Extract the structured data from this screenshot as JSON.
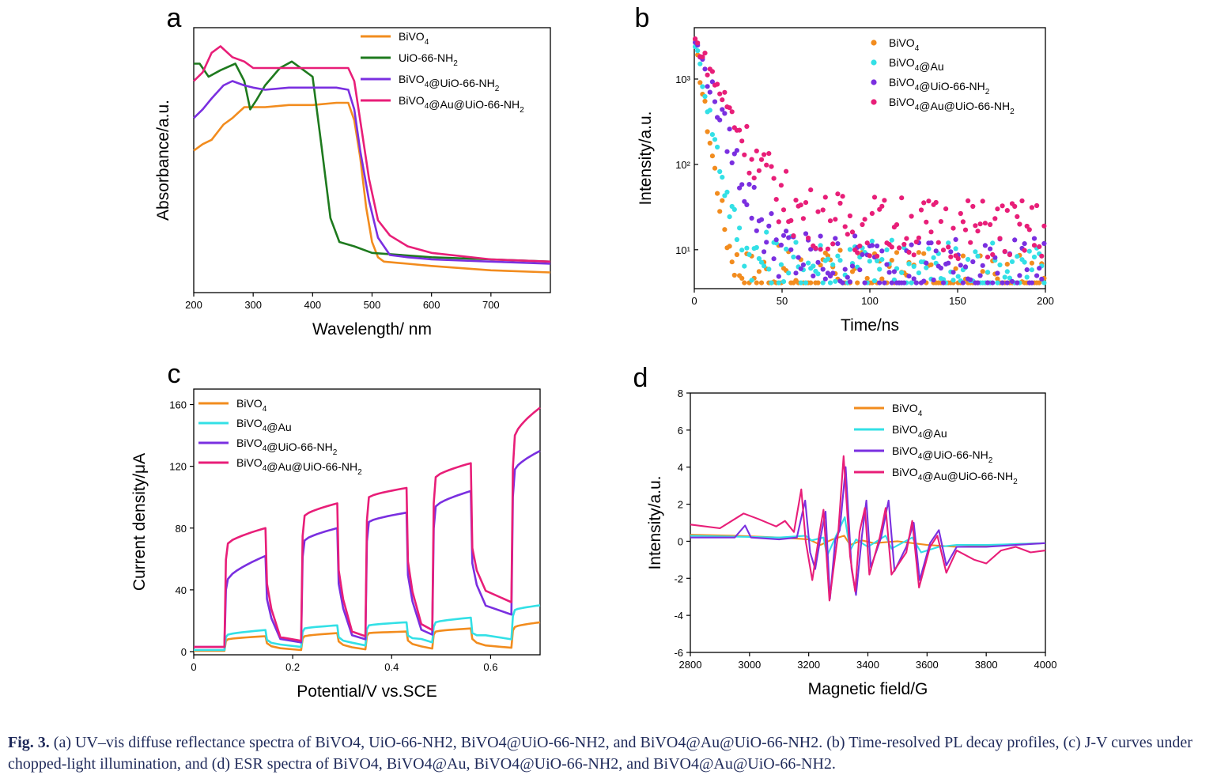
{
  "caption": {
    "label": "Fig. 3.",
    "text": "(a) UV–vis diffuse reflectance spectra of BiVO4, UiO-66-NH2, BiVO4@UiO-66-NH2, and BiVO4@Au@UiO-66-NH2. (b) Time-resolved PL decay profiles, (c) J-V curves under chopped-light illumination, and (d) ESR spectra of BiVO4, BiVO4@Au, BiVO4@UiO-66-NH2, and BiVO4@Au@UiO-66-NH2."
  },
  "chart_data": [
    {
      "panel": "a",
      "type": "line",
      "xlabel": "Wavelength/ nm",
      "ylabel": "Absorbance/a.u.",
      "xlim": [
        200,
        800
      ],
      "ylim": [
        0,
        1
      ],
      "xticks": [
        200,
        300,
        400,
        500,
        600,
        700
      ],
      "yticks": [],
      "legend": "top-right",
      "series": [
        {
          "name": "BiVO4",
          "color": "#f28c1e",
          "points": [
            [
              200,
              0.58
            ],
            [
              215,
              0.61
            ],
            [
              230,
              0.63
            ],
            [
              250,
              0.7
            ],
            [
              265,
              0.73
            ],
            [
              285,
              0.78
            ],
            [
              320,
              0.78
            ],
            [
              360,
              0.79
            ],
            [
              400,
              0.79
            ],
            [
              440,
              0.8
            ],
            [
              460,
              0.8
            ],
            [
              470,
              0.72
            ],
            [
              480,
              0.55
            ],
            [
              490,
              0.32
            ],
            [
              500,
              0.16
            ],
            [
              510,
              0.09
            ],
            [
              520,
              0.07
            ],
            [
              560,
              0.06
            ],
            [
              600,
              0.05
            ],
            [
              700,
              0.03
            ],
            [
              800,
              0.02
            ]
          ]
        },
        {
          "name": "UiO-66-NH2",
          "color": "#1e7a1e",
          "points": [
            [
              200,
              0.98
            ],
            [
              210,
              0.98
            ],
            [
              225,
              0.92
            ],
            [
              245,
              0.95
            ],
            [
              270,
              0.98
            ],
            [
              285,
              0.9
            ],
            [
              295,
              0.77
            ],
            [
              305,
              0.81
            ],
            [
              320,
              0.88
            ],
            [
              345,
              0.96
            ],
            [
              365,
              0.99
            ],
            [
              385,
              0.95
            ],
            [
              400,
              0.92
            ],
            [
              415,
              0.6
            ],
            [
              430,
              0.27
            ],
            [
              445,
              0.16
            ],
            [
              470,
              0.14
            ],
            [
              500,
              0.11
            ],
            [
              600,
              0.09
            ],
            [
              700,
              0.08
            ],
            [
              800,
              0.07
            ]
          ]
        },
        {
          "name": "BiVO4@UiO-66-NH2",
          "color": "#7a2fe0",
          "points": [
            [
              200,
              0.73
            ],
            [
              215,
              0.77
            ],
            [
              230,
              0.82
            ],
            [
              250,
              0.88
            ],
            [
              265,
              0.9
            ],
            [
              285,
              0.88
            ],
            [
              300,
              0.87
            ],
            [
              320,
              0.86
            ],
            [
              360,
              0.87
            ],
            [
              400,
              0.87
            ],
            [
              440,
              0.87
            ],
            [
              460,
              0.86
            ],
            [
              470,
              0.77
            ],
            [
              480,
              0.58
            ],
            [
              495,
              0.35
            ],
            [
              510,
              0.18
            ],
            [
              530,
              0.1
            ],
            [
              560,
              0.09
            ],
            [
              600,
              0.08
            ],
            [
              700,
              0.07
            ],
            [
              800,
              0.06
            ]
          ]
        },
        {
          "name": "BiVO4@Au@UiO-66-NH2",
          "color": "#e81e78",
          "points": [
            [
              200,
              0.9
            ],
            [
              215,
              0.94
            ],
            [
              230,
              1.03
            ],
            [
              245,
              1.06
            ],
            [
              265,
              1.01
            ],
            [
              285,
              0.99
            ],
            [
              300,
              0.96
            ],
            [
              325,
              0.96
            ],
            [
              350,
              0.96
            ],
            [
              375,
              0.96
            ],
            [
              400,
              0.96
            ],
            [
              440,
              0.96
            ],
            [
              460,
              0.96
            ],
            [
              470,
              0.9
            ],
            [
              480,
              0.72
            ],
            [
              495,
              0.45
            ],
            [
              510,
              0.26
            ],
            [
              530,
              0.19
            ],
            [
              560,
              0.14
            ],
            [
              600,
              0.11
            ],
            [
              700,
              0.08
            ],
            [
              800,
              0.07
            ]
          ]
        }
      ]
    },
    {
      "panel": "b",
      "type": "scatter",
      "xlabel": "Time/ns",
      "ylabel": "Intensity/a.u.",
      "xlim": [
        0,
        200
      ],
      "ylim": [
        3.5,
        4000
      ],
      "yscale": "log",
      "xticks": [
        0,
        50,
        100,
        150,
        200
      ],
      "yticks": [
        {
          "label": "10³",
          "value": 1000
        },
        {
          "label": "10²",
          "value": 100
        },
        {
          "label": "10¹",
          "value": 10
        }
      ],
      "legend": "top-right",
      "series": [
        {
          "name": "BiVO4",
          "color": "#f28c1e",
          "decay": {
            "a": 3000,
            "tau": 3.2,
            "floor": 4.5
          }
        },
        {
          "name": "BiVO4@Au",
          "color": "#33e0e6",
          "decay": {
            "a": 3000,
            "tau": 4.2,
            "floor": 6.5
          }
        },
        {
          "name": "BiVO4@UiO-66-NH2",
          "color": "#7a2fe0",
          "decay": {
            "a": 3000,
            "tau": 7,
            "floor": 7
          }
        },
        {
          "name": "BiVO4@Au@UiO-66-NH2",
          "color": "#e81e78",
          "decay": {
            "a": 3000,
            "tau": 10,
            "floor": 20
          }
        }
      ]
    },
    {
      "panel": "c",
      "type": "line",
      "xlabel": "Potential/V vs.SCE",
      "ylabel": "Current density/μA",
      "xlim": [
        0,
        0.7
      ],
      "ylim": [
        0,
        170
      ],
      "xticks": [
        0,
        0.2,
        0.4,
        0.6
      ],
      "yticks": [
        0,
        40,
        80,
        120,
        160
      ],
      "legend": "top-left",
      "light_on": [
        [
          0.065,
          0.145
        ],
        [
          0.22,
          0.29
        ],
        [
          0.35,
          0.43
        ],
        [
          0.485,
          0.56
        ],
        [
          0.645,
          0.7
        ]
      ],
      "series": [
        {
          "name": "BiVO4",
          "color": "#f28c1e",
          "dark": [
            0.5,
            1,
            1.5,
            2,
            2.5
          ],
          "on": [
            [
              8,
              10
            ],
            [
              10,
              12
            ],
            [
              12,
              13
            ],
            [
              13,
              15
            ],
            [
              16,
              19
            ]
          ]
        },
        {
          "name": "BiVO4@Au",
          "color": "#33e0e6",
          "dark": [
            1,
            3,
            4,
            6,
            8
          ],
          "on": [
            [
              11,
              14
            ],
            [
              15,
              17
            ],
            [
              17,
              19
            ],
            [
              19,
              22
            ],
            [
              27,
              30
            ]
          ]
        },
        {
          "name": "BiVO4@UiO-66-NH2",
          "color": "#7a2fe0",
          "dark": [
            3,
            6,
            8,
            11,
            24
          ],
          "on": [
            [
              47,
              62
            ],
            [
              72,
              80
            ],
            [
              84,
              90
            ],
            [
              94,
              104
            ],
            [
              118,
              130
            ]
          ]
        },
        {
          "name": "BiVO4@Au@UiO-66-NH2",
          "color": "#e81e78",
          "dark": [
            3,
            7,
            10,
            14,
            32
          ],
          "on": [
            [
              70,
              80
            ],
            [
              88,
              96
            ],
            [
              100,
              106
            ],
            [
              113,
              122
            ],
            [
              140,
              158
            ]
          ]
        }
      ]
    },
    {
      "panel": "d",
      "type": "line",
      "xlabel": "Magnetic field/G",
      "ylabel": "Intensity/a.u.",
      "xlim": [
        2800,
        4000
      ],
      "ylim": [
        -6,
        8
      ],
      "xticks": [
        2800,
        3000,
        3200,
        3400,
        3600,
        3800,
        4000
      ],
      "yticks": [
        -6,
        -4,
        -2,
        0,
        2,
        4,
        6,
        8
      ],
      "legend": "top-right",
      "series": [
        {
          "name": "BiVO4",
          "color": "#f28c1e",
          "points": [
            [
              2800,
              0.35
            ],
            [
              2950,
              0.3
            ],
            [
              3100,
              0.2
            ],
            [
              3200,
              0.1
            ],
            [
              3240,
              -0.2
            ],
            [
              3280,
              0.1
            ],
            [
              3320,
              0.3
            ],
            [
              3340,
              -0.2
            ],
            [
              3380,
              0.05
            ],
            [
              3420,
              -0.1
            ],
            [
              3500,
              0.0
            ],
            [
              3600,
              -0.2
            ],
            [
              3700,
              -0.3
            ],
            [
              3800,
              -0.25
            ],
            [
              3900,
              -0.15
            ],
            [
              4000,
              -0.1
            ]
          ]
        },
        {
          "name": "BiVO4@Au",
          "color": "#33e0e6",
          "points": [
            [
              2800,
              0.3
            ],
            [
              2950,
              0.25
            ],
            [
              3100,
              0.2
            ],
            [
              3190,
              0.3
            ],
            [
              3210,
              0.05
            ],
            [
              3250,
              0.2
            ],
            [
              3262,
              -0.8
            ],
            [
              3290,
              0.2
            ],
            [
              3322,
              1.3
            ],
            [
              3340,
              -0.5
            ],
            [
              3360,
              0.1
            ],
            [
              3400,
              -0.3
            ],
            [
              3460,
              0.3
            ],
            [
              3480,
              -0.4
            ],
            [
              3550,
              0.2
            ],
            [
              3580,
              -0.6
            ],
            [
              3640,
              -0.3
            ],
            [
              3700,
              -0.2
            ],
            [
              3800,
              -0.2
            ],
            [
              4000,
              -0.1
            ]
          ]
        },
        {
          "name": "BiVO4@UiO-66-NH2",
          "color": "#7a2fe0",
          "points": [
            [
              2800,
              0.2
            ],
            [
              2950,
              0.2
            ],
            [
              2985,
              0.85
            ],
            [
              3005,
              0.2
            ],
            [
              3100,
              0.1
            ],
            [
              3160,
              0.2
            ],
            [
              3188,
              2.2
            ],
            [
              3205,
              -0.6
            ],
            [
              3222,
              -1.5
            ],
            [
              3240,
              0.2
            ],
            [
              3257,
              1.6
            ],
            [
              3272,
              -3.1
            ],
            [
              3290,
              0.1
            ],
            [
              3305,
              0.6
            ],
            [
              3325,
              4.0
            ],
            [
              3345,
              -1.5
            ],
            [
              3360,
              -2.9
            ],
            [
              3380,
              0.3
            ],
            [
              3395,
              2.2
            ],
            [
              3410,
              -1.4
            ],
            [
              3445,
              0.2
            ],
            [
              3470,
              2.2
            ],
            [
              3490,
              -1.6
            ],
            [
              3530,
              -0.3
            ],
            [
              3555,
              1.0
            ],
            [
              3575,
              -2.1
            ],
            [
              3610,
              -0.1
            ],
            [
              3640,
              0.6
            ],
            [
              3665,
              -1.3
            ],
            [
              3700,
              -0.3
            ],
            [
              3800,
              -0.3
            ],
            [
              3900,
              -0.2
            ],
            [
              4000,
              -0.1
            ]
          ]
        },
        {
          "name": "BiVO4@Au@UiO-66-NH2",
          "color": "#e81e78",
          "points": [
            [
              2800,
              0.9
            ],
            [
              2900,
              0.7
            ],
            [
              2980,
              1.5
            ],
            [
              3030,
              1.2
            ],
            [
              3090,
              0.8
            ],
            [
              3120,
              1.1
            ],
            [
              3150,
              0.5
            ],
            [
              3175,
              2.8
            ],
            [
              3190,
              0.0
            ],
            [
              3212,
              -2.1
            ],
            [
              3235,
              0.3
            ],
            [
              3250,
              1.7
            ],
            [
              3270,
              -3.2
            ],
            [
              3300,
              0.5
            ],
            [
              3318,
              4.6
            ],
            [
              3340,
              -0.8
            ],
            [
              3357,
              -2.7
            ],
            [
              3372,
              0.5
            ],
            [
              3390,
              1.8
            ],
            [
              3405,
              -1.8
            ],
            [
              3440,
              0.2
            ],
            [
              3460,
              1.8
            ],
            [
              3480,
              -1.8
            ],
            [
              3530,
              -0.6
            ],
            [
              3550,
              1.1
            ],
            [
              3573,
              -2.5
            ],
            [
              3610,
              -0.3
            ],
            [
              3635,
              0.3
            ],
            [
              3665,
              -1.7
            ],
            [
              3700,
              -0.5
            ],
            [
              3760,
              -1.0
            ],
            [
              3800,
              -1.2
            ],
            [
              3850,
              -0.5
            ],
            [
              3900,
              -0.3
            ],
            [
              3950,
              -0.6
            ],
            [
              4000,
              -0.5
            ]
          ]
        }
      ]
    }
  ]
}
